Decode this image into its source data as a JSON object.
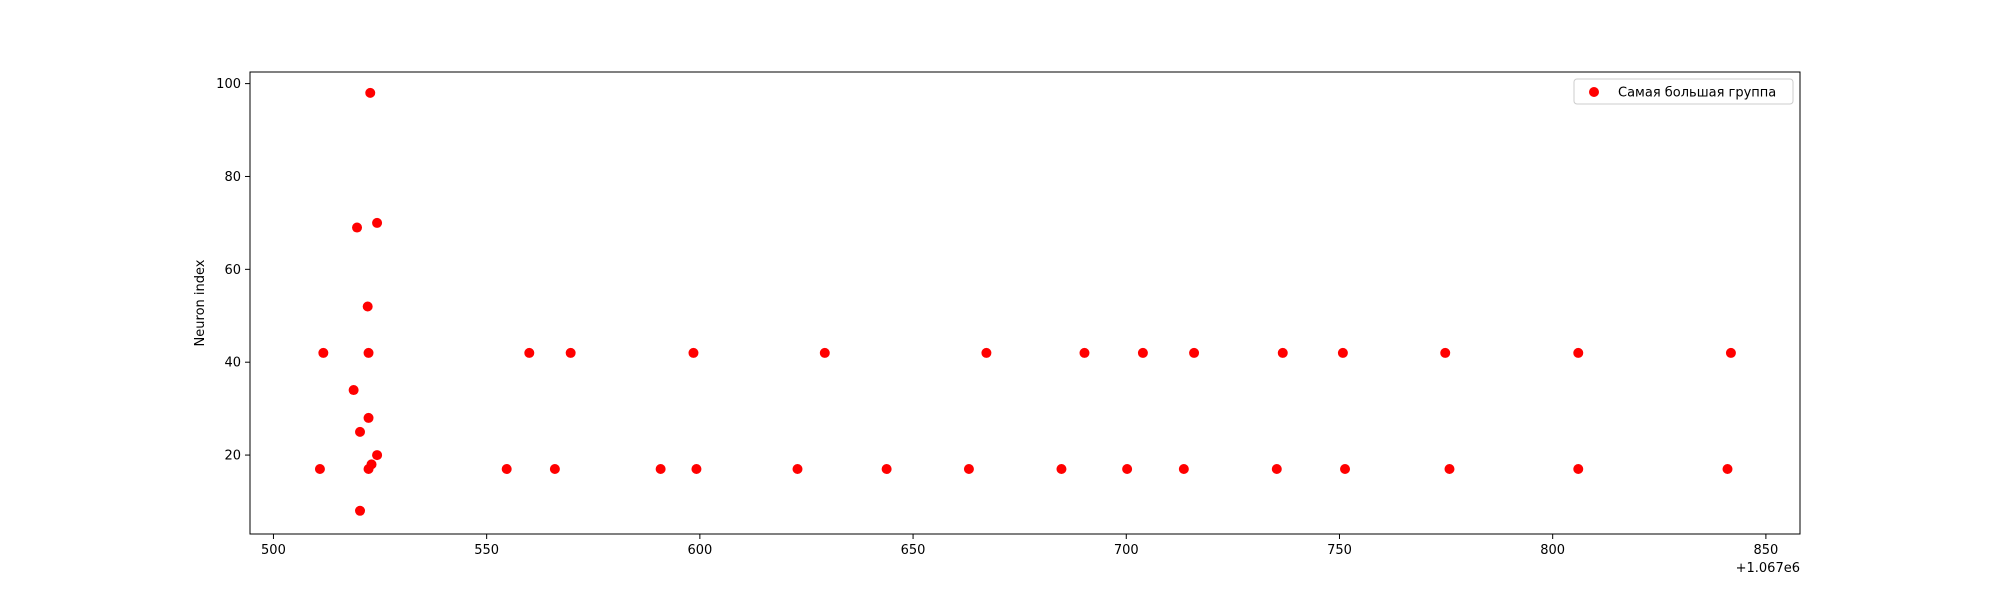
{
  "chart_data": {
    "type": "scatter",
    "title": "",
    "xlabel": "",
    "ylabel": "Neuron index",
    "x_offset_label": "+1.067e6",
    "xlim": [
      494.5,
      858
    ],
    "ylim": [
      3,
      102.5
    ],
    "xticks": [
      500,
      550,
      600,
      650,
      700,
      750,
      800,
      850
    ],
    "yticks": [
      20,
      40,
      60,
      80,
      100
    ],
    "grid": false,
    "legend_position": "top-right",
    "series": [
      {
        "name": "Самая большая группа",
        "color": "#ff0000",
        "points": [
          {
            "x": 510.9,
            "y": 17
          },
          {
            "x": 511.7,
            "y": 42
          },
          {
            "x": 518.8,
            "y": 34
          },
          {
            "x": 519.6,
            "y": 69
          },
          {
            "x": 520.3,
            "y": 25
          },
          {
            "x": 520.3,
            "y": 8
          },
          {
            "x": 522.1,
            "y": 52
          },
          {
            "x": 522.3,
            "y": 28
          },
          {
            "x": 522.3,
            "y": 42
          },
          {
            "x": 522.3,
            "y": 17
          },
          {
            "x": 522.7,
            "y": 98
          },
          {
            "x": 523.0,
            "y": 18
          },
          {
            "x": 524.3,
            "y": 70
          },
          {
            "x": 524.3,
            "y": 20
          },
          {
            "x": 554.7,
            "y": 17
          },
          {
            "x": 560.0,
            "y": 42
          },
          {
            "x": 566.0,
            "y": 17
          },
          {
            "x": 569.7,
            "y": 42
          },
          {
            "x": 590.8,
            "y": 17
          },
          {
            "x": 598.5,
            "y": 42
          },
          {
            "x": 599.2,
            "y": 17
          },
          {
            "x": 622.9,
            "y": 17
          },
          {
            "x": 629.3,
            "y": 42
          },
          {
            "x": 643.8,
            "y": 17
          },
          {
            "x": 663.1,
            "y": 17
          },
          {
            "x": 667.2,
            "y": 42
          },
          {
            "x": 684.8,
            "y": 17
          },
          {
            "x": 690.2,
            "y": 42
          },
          {
            "x": 700.2,
            "y": 17
          },
          {
            "x": 703.9,
            "y": 42
          },
          {
            "x": 713.5,
            "y": 17
          },
          {
            "x": 715.9,
            "y": 42
          },
          {
            "x": 735.3,
            "y": 17
          },
          {
            "x": 736.7,
            "y": 42
          },
          {
            "x": 750.8,
            "y": 42
          },
          {
            "x": 751.3,
            "y": 17
          },
          {
            "x": 774.8,
            "y": 42
          },
          {
            "x": 775.8,
            "y": 17
          },
          {
            "x": 806.0,
            "y": 42
          },
          {
            "x": 806.0,
            "y": 17
          },
          {
            "x": 841.0,
            "y": 17
          },
          {
            "x": 841.8,
            "y": 42
          }
        ]
      }
    ]
  }
}
